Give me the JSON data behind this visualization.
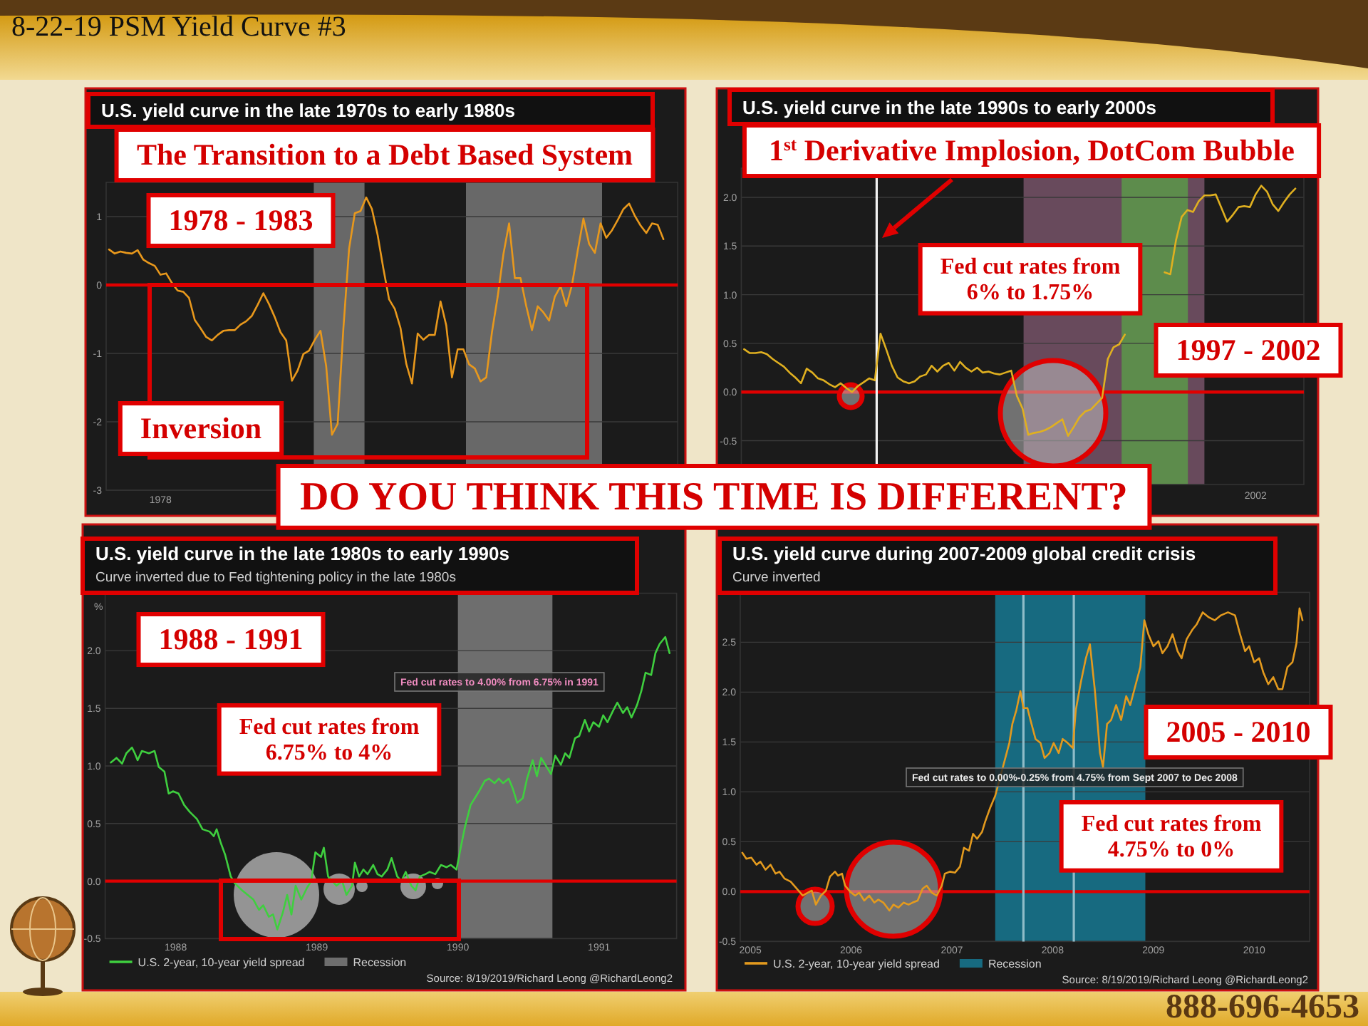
{
  "chart_data": [
    {
      "type": "line",
      "title": "U.S. yield curve in the late 1970s to early 1980s",
      "annotations": [
        "8-22-19 PSM Yield Curve #3",
        "The Transition to a Debt Based System",
        "1978 - 1983",
        "Inversion",
        "DO YOU THINK THIS TIME IS DIFFERENT?"
      ],
      "categories": [
        null,
        null,
        null,
        null,
        null,
        null,
        null,
        null,
        null,
        "1978",
        null,
        null,
        null,
        null,
        null,
        null,
        null,
        null,
        null,
        null,
        null,
        null,
        null,
        null,
        null,
        null,
        null,
        null,
        null,
        null,
        null,
        null,
        null,
        null,
        null,
        null,
        null,
        null,
        null,
        null,
        null,
        null,
        null,
        null,
        null,
        null,
        null,
        null,
        null,
        null,
        null,
        null,
        null,
        null,
        null,
        null,
        null,
        null,
        null,
        null,
        null,
        null,
        null,
        null,
        null,
        null,
        null,
        null,
        null,
        null,
        null,
        null,
        null,
        null,
        null,
        null,
        null,
        null,
        null,
        null,
        null,
        null,
        null,
        null,
        null,
        null,
        null,
        null,
        null,
        null,
        null,
        null,
        null,
        null,
        null,
        null,
        null,
        null,
        null,
        null
      ],
      "series": [
        {
          "color": "#e8981c",
          "values": [
            0.52,
            0.46,
            0.49,
            0.47,
            0.46,
            0.51,
            0.37,
            0.32,
            0.28,
            0.15,
            0.17,
            0.03,
            -0.08,
            -0.1,
            -0.19,
            -0.51,
            -0.63,
            -0.76,
            -0.81,
            -0.73,
            -0.67,
            -0.66,
            -0.66,
            -0.58,
            -0.53,
            -0.45,
            -0.29,
            -0.12,
            -0.28,
            -0.47,
            -0.69,
            -0.81,
            -1.4,
            -1.25,
            -1.01,
            -0.96,
            -0.8,
            -0.67,
            -1.19,
            -2.19,
            -2.03,
            -0.64,
            0.53,
            1.05,
            1.08,
            1.28,
            1.11,
            0.73,
            0.24,
            -0.21,
            -0.35,
            -0.63,
            -1.15,
            -1.44,
            -0.71,
            -0.8,
            -0.73,
            -0.73,
            -0.24,
            -0.59,
            -1.35,
            -0.94,
            -0.94,
            -1.16,
            -1.22,
            -1.41,
            -1.35,
            -0.69,
            -0.17,
            0.45,
            0.9,
            0.1,
            0.1,
            -0.31,
            -0.66,
            -0.31,
            -0.4,
            -0.52,
            -0.17,
            -0.02,
            -0.31,
            0.0,
            0.5,
            0.97,
            0.6,
            0.47,
            0.9,
            0.69,
            0.8,
            0.95,
            1.11,
            1.19,
            1.01,
            0.87,
            0.76,
            0.9,
            0.88,
            0.67,
            null,
            null
          ]
        }
      ],
      "ylim": [
        -3,
        1.5
      ],
      "yticks": [
        1,
        0,
        -1,
        -2,
        -3
      ],
      "grid": "y",
      "ref_lines": [
        {
          "axis": "y",
          "value": 0,
          "color": "#e00000"
        }
      ]
    },
    {
      "type": "line",
      "title": "U.S. yield curve in the late 1990s to early 2000s",
      "annotations": [
        "1$^{st}$ Derivative Implosion, DotCom Bubble",
        "Fed cut rates from 6% to 1.75%",
        "1997 - 2002"
      ],
      "categories": [
        null,
        null,
        null,
        null,
        null,
        null,
        null,
        null,
        null,
        null,
        null,
        null,
        null,
        null,
        null,
        null,
        null,
        null,
        null,
        null,
        null,
        null,
        null,
        null,
        null,
        null,
        null,
        null,
        null,
        null,
        null,
        null,
        null,
        null,
        null,
        null,
        null,
        null,
        null,
        null,
        null,
        null,
        null,
        null,
        null,
        null,
        null,
        null,
        null,
        null,
        null,
        null,
        null,
        null,
        null,
        null,
        null,
        null,
        null,
        null,
        null,
        null,
        null,
        null,
        null,
        null,
        null,
        null,
        null,
        null,
        null,
        null,
        null,
        null,
        null,
        null,
        null,
        null,
        null,
        null,
        null,
        null,
        null,
        null,
        null,
        null,
        null,
        null,
        null,
        null,
        "2002",
        null,
        null,
        null,
        null,
        null,
        null,
        null,
        null
      ],
      "series": [
        {
          "color": "#e0b020",
          "values": [
            0.44,
            0.4,
            0.4,
            0.41,
            0.39,
            0.34,
            0.3,
            0.26,
            0.2,
            0.15,
            0.09,
            0.24,
            0.2,
            0.14,
            0.12,
            0.08,
            0.05,
            0.09,
            0.04,
            0.0,
            0.06,
            0.1,
            0.14,
            0.12,
            0.6,
            0.44,
            0.27,
            0.15,
            0.11,
            0.09,
            0.11,
            0.16,
            0.18,
            0.27,
            0.21,
            0.27,
            0.3,
            0.22,
            0.31,
            0.25,
            0.21,
            0.25,
            0.2,
            0.21,
            0.19,
            0.18,
            0.2,
            0.22,
            -0.04,
            -0.17,
            -0.44,
            -0.42,
            -0.41,
            -0.39,
            -0.36,
            -0.32,
            -0.28,
            -0.45,
            -0.36,
            -0.26,
            -0.2,
            -0.18,
            -0.12,
            -0.06,
            0.34,
            0.46,
            0.49,
            0.59,
            null,
            null,
            null,
            null,
            null,
            null,
            null,
            null,
            null,
            null,
            null,
            null,
            null,
            null,
            null,
            null,
            null,
            null,
            null,
            null,
            null,
            null,
            null,
            null,
            null,
            null,
            null,
            null,
            null,
            null,
            null
          ]
        },
        {
          "color": "#e0b020",
          "values": [
            null,
            null,
            null,
            null,
            null,
            null,
            null,
            null,
            null,
            null,
            null,
            null,
            null,
            null,
            null,
            null,
            null,
            null,
            null,
            null,
            null,
            null,
            null,
            null,
            null,
            null,
            null,
            null,
            null,
            null,
            null,
            null,
            null,
            null,
            null,
            null,
            null,
            null,
            null,
            null,
            null,
            null,
            null,
            null,
            null,
            null,
            null,
            null,
            null,
            null,
            null,
            null,
            null,
            null,
            null,
            null,
            null,
            null,
            null,
            null,
            null,
            null,
            null,
            null,
            null,
            null,
            null,
            null,
            null,
            null,
            null,
            null,
            null,
            null,
            1.23,
            1.21,
            1.56,
            1.8,
            1.87,
            1.85,
            1.96,
            2.02,
            2.02,
            2.03,
            1.89,
            1.75,
            1.82,
            1.9,
            1.91,
            1.9,
            2.03,
            2.12,
            2.06,
            1.93,
            1.86,
            1.95,
            2.03,
            2.09,
            null
          ]
        }
      ],
      "ylim": [
        -0.95,
        2.3
      ],
      "yticks": [
        -0.5,
        {
          "value": 0,
          "label": "0.0"
        },
        0.5,
        {
          "value": 1,
          "label": "1.0"
        },
        1.5,
        {
          "value": 2,
          "label": "2.0"
        }
      ],
      "grid": "y",
      "ref_lines": [
        {
          "axis": "y",
          "value": 0,
          "color": "#e00000"
        }
      ]
    },
    {
      "type": "line",
      "title": "U.S. yield curve in the late 1980s to early 1990s",
      "subtitle": "Curve inverted due to Fed tightening policy in the late 1980s",
      "ylabel": "%",
      "annotations": [
        "1988 - 1991",
        "Fed cut rates to 4.00% from 6.75% in 1991",
        "Fed cut rates from 6.75% to 4%",
        "Source: 8/19/2019/Richard Leong @RichardLeong2"
      ],
      "x": [
        1987.54,
        1987.58,
        1987.62,
        1987.65,
        1987.69,
        1987.71,
        1987.73,
        1987.76,
        1987.81,
        1987.85,
        1987.88,
        1987.92,
        1987.95,
        1987.98,
        1988.02,
        1988.06,
        1988.1,
        1988.15,
        1988.19,
        1988.24,
        1988.27,
        1988.29,
        1988.32,
        1988.35,
        1988.39,
        1988.42,
        1988.47,
        1988.51,
        1988.55,
        1988.59,
        1988.62,
        1988.66,
        1988.69,
        1988.72,
        1988.76,
        1988.79,
        1988.82,
        1988.85,
        1988.89,
        1988.93,
        1988.96,
        1988.99,
        1989.03,
        1989.05,
        1989.08,
        1989.11,
        1989.14,
        1989.18,
        1989.21,
        1989.25,
        1989.27,
        1989.3,
        1989.33,
        1989.36,
        1989.4,
        1989.43,
        1989.46,
        1989.5,
        1989.53,
        1989.57,
        1989.6,
        1989.63,
        1989.67,
        1989.7,
        1989.73,
        1989.77,
        1989.8,
        1989.84,
        1989.88,
        1989.92,
        1989.95,
        1989.99,
        1990.02,
        1990.05,
        1990.09,
        1990.12,
        1990.15,
        1990.19,
        1990.22,
        1990.26,
        1990.29,
        1990.32,
        1990.36,
        1990.39,
        1990.42,
        1990.46,
        1990.49,
        1990.53,
        1990.56,
        1990.59,
        1990.63,
        1990.66,
        1990.69,
        1990.73,
        1990.76,
        1990.79,
        1990.83,
        1990.86,
        1990.9,
        1990.93,
        1990.96,
        1991.0,
        1991.03,
        1991.06,
        1991.1,
        1991.13,
        1991.17,
        1991.2,
        1991.23,
        1991.27,
        1991.3,
        1991.33,
        1991.37,
        1991.4,
        1991.43,
        1991.47,
        1991.5
      ],
      "series": [
        {
          "name": "U.S. 2-year, 10-year yield spread",
          "color": "#3fcf3f",
          "values": [
            1.03,
            1.07,
            1.02,
            1.11,
            1.16,
            1.11,
            1.05,
            1.13,
            1.11,
            1.13,
            0.99,
            0.95,
            0.76,
            0.78,
            0.76,
            0.66,
            0.6,
            0.54,
            0.45,
            0.43,
            0.39,
            0.45,
            0.33,
            0.23,
            0.04,
            -0.02,
            -0.08,
            -0.12,
            -0.16,
            -0.25,
            -0.21,
            -0.31,
            -0.29,
            -0.42,
            -0.27,
            -0.12,
            -0.29,
            -0.04,
            -0.16,
            -0.06,
            0.0,
            0.25,
            0.21,
            0.29,
            0.04,
            0.0,
            -0.04,
            0.0,
            -0.12,
            -0.04,
            0.16,
            0.04,
            0.1,
            0.06,
            0.14,
            0.06,
            0.04,
            0.1,
            0.2,
            0.04,
            0.0,
            0.08,
            -0.04,
            -0.08,
            0.04,
            0.06,
            0.08,
            0.06,
            0.14,
            0.12,
            0.14,
            0.1,
            0.29,
            0.47,
            0.66,
            0.72,
            0.78,
            0.87,
            0.89,
            0.85,
            0.89,
            0.85,
            0.89,
            0.8,
            0.68,
            0.72,
            0.89,
            1.05,
            0.91,
            1.07,
            0.99,
            0.93,
            1.09,
            1.01,
            1.11,
            1.07,
            1.24,
            1.26,
            1.4,
            1.3,
            1.38,
            1.34,
            1.44,
            1.38,
            1.48,
            1.55,
            1.46,
            1.51,
            1.42,
            1.53,
            1.65,
            1.81,
            1.79,
            1.98,
            2.06,
            2.12,
            1.98
          ]
        }
      ],
      "xlim": [
        1987.5,
        1991.55
      ],
      "ylim": [
        -0.5,
        2.5
      ],
      "xticks": [
        1988,
        1989,
        1990,
        1991
      ],
      "yticks": [
        -0.5,
        {
          "value": 0,
          "label": "0.0"
        },
        0.5,
        {
          "value": 1,
          "label": "1.0"
        },
        1.5,
        {
          "value": 2,
          "label": "2.0"
        }
      ],
      "grid": "y",
      "legend": "bottom",
      "bands": [
        {
          "axis": "x",
          "from": 1990.0,
          "to": 1990.67,
          "color": "#6e6e6e",
          "label": "Recession"
        }
      ],
      "ref_lines": [
        {
          "axis": "y",
          "value": 0,
          "color": "#e00000"
        }
      ]
    },
    {
      "type": "line",
      "title": "U.S. yield curve during 2007-2009 global credit crisis",
      "subtitle": "Curve inverted",
      "annotations": [
        "2005 - 2010",
        "Fed cut rates to 0.00%-0.25% from 4.75% from Sept 2007 to Dec 2008",
        "Fed cut rates from 4.75% to 0%",
        "Source: 8/19/2019/Richard Leong @RichardLeong2",
        "888-696-4653"
      ],
      "x": [
        2004.92,
        2004.96,
        2005.01,
        2005.06,
        2005.1,
        2005.15,
        2005.2,
        2005.25,
        2005.29,
        2005.34,
        2005.4,
        2005.46,
        2005.52,
        2005.57,
        2005.61,
        2005.65,
        2005.7,
        2005.75,
        2005.79,
        2005.84,
        2005.87,
        2005.91,
        2005.94,
        2005.99,
        2006.04,
        2006.08,
        2006.13,
        2006.18,
        2006.23,
        2006.27,
        2006.32,
        2006.38,
        2006.42,
        2006.47,
        2006.52,
        2006.57,
        2006.61,
        2006.66,
        2006.71,
        2006.75,
        2006.8,
        2006.85,
        2006.9,
        2006.93,
        2006.98,
        2007.03,
        2007.08,
        2007.12,
        2007.17,
        2007.21,
        2007.25,
        2007.3,
        2007.33,
        2007.38,
        2007.43,
        2007.57,
        2007.6,
        2007.64,
        2007.68,
        2007.71,
        2007.75,
        2007.78,
        2007.83,
        2007.88,
        2007.92,
        2007.97,
        2008.01,
        2008.06,
        2008.1,
        2008.15,
        2008.2,
        2008.23,
        2008.28,
        2008.33,
        2008.37,
        2008.42,
        2008.47,
        2008.5,
        2008.54,
        2008.58,
        2008.63,
        2008.68,
        2008.73,
        2008.77,
        2008.82,
        2008.87,
        2008.91,
        2008.95,
        2009.0,
        2009.05,
        2009.09,
        2009.14,
        2009.19,
        2009.24,
        2009.28,
        2009.33,
        2009.39,
        2009.43,
        2009.49,
        2009.55,
        2009.61,
        2009.67,
        2009.74,
        2009.81,
        2009.86,
        2009.91,
        2009.95,
        2010.0,
        2010.05,
        2010.09,
        2010.14,
        2010.19,
        2010.24,
        2010.28,
        2010.33,
        2010.38,
        2010.42,
        2010.45,
        2010.48
      ],
      "series": [
        {
          "name": "U.S. 2-year, 10-year yield spread",
          "color": "#e39a1e",
          "values": [
            0.39,
            0.33,
            0.34,
            0.27,
            0.3,
            0.22,
            0.27,
            0.18,
            0.2,
            0.13,
            0.1,
            0.03,
            -0.04,
            -0.01,
            0.01,
            -0.13,
            -0.04,
            0.01,
            0.15,
            0.2,
            0.16,
            0.18,
            0.06,
            0.0,
            -0.04,
            -0.01,
            -0.09,
            -0.04,
            -0.11,
            -0.08,
            -0.11,
            -0.19,
            -0.13,
            -0.16,
            -0.11,
            -0.13,
            -0.11,
            -0.09,
            0.03,
            0.06,
            -0.01,
            -0.04,
            0.06,
            0.18,
            0.2,
            0.19,
            0.25,
            0.44,
            0.41,
            0.58,
            0.53,
            0.6,
            0.7,
            0.84,
            0.96,
            1.49,
            1.68,
            1.82,
            2.01,
            1.84,
            1.84,
            1.72,
            1.53,
            1.49,
            1.34,
            1.39,
            1.49,
            1.39,
            1.53,
            1.49,
            1.44,
            1.82,
            2.1,
            2.34,
            2.48,
            2.01,
            1.39,
            1.25,
            1.68,
            1.72,
            1.87,
            1.72,
            1.96,
            1.87,
            2.06,
            2.25,
            2.72,
            2.58,
            2.46,
            2.51,
            2.39,
            2.46,
            2.58,
            2.41,
            2.34,
            2.53,
            2.63,
            2.68,
            2.8,
            2.75,
            2.72,
            2.77,
            2.8,
            2.77,
            2.58,
            2.41,
            2.46,
            2.3,
            2.34,
            2.2,
            2.08,
            2.15,
            2.03,
            2.03,
            2.25,
            2.3,
            2.49,
            2.84,
            2.72
          ]
        }
      ],
      "xlim": [
        2004.9,
        2010.55
      ],
      "ylim": [
        -0.5,
        3.0
      ],
      "xticks": [
        2005,
        2006,
        2007,
        2008,
        2009,
        2010
      ],
      "yticks": [
        -0.5,
        {
          "value": 0,
          "label": "0.0"
        },
        0.5,
        {
          "value": 1,
          "label": "1.0"
        },
        1.5,
        {
          "value": 2,
          "label": "2.0"
        },
        2.5
      ],
      "grid": "y",
      "legend": "bottom",
      "bands": [
        {
          "axis": "x",
          "from": 2007.43,
          "to": 2008.92,
          "color": "#176a80",
          "label": "Recession"
        }
      ],
      "ref_lines": [
        {
          "axis": "y",
          "value": 0,
          "color": "#e00000"
        },
        {
          "axis": "x",
          "value": 2007.71,
          "color": "#8fbcc8"
        },
        {
          "axis": "x",
          "value": 2008.21,
          "color": "#8fbcc8"
        }
      ]
    }
  ]
}
